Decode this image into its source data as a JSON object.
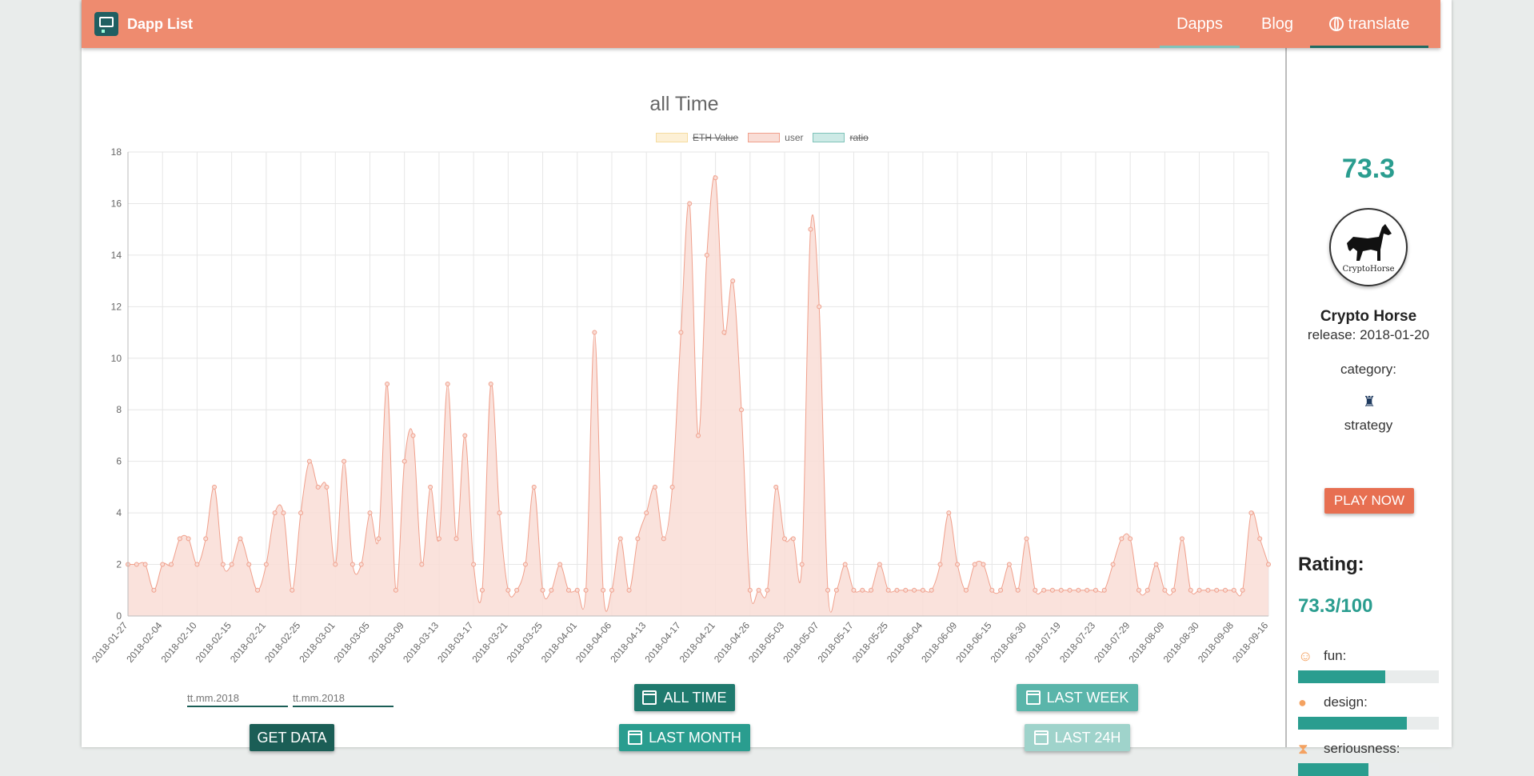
{
  "nav": {
    "brand": "Dapp List",
    "dapps": "Dapps",
    "blog": "Blog",
    "translate": "translate",
    "color": "#ee8b6f"
  },
  "controls": {
    "start_placeholder": "tt.mm.2018",
    "end_placeholder": "tt.mm.2018",
    "get_data": "GET DATA",
    "all_time": "ALL TIME",
    "last_month": "LAST MONTH",
    "last_week": "LAST WEEK",
    "last_24h": "LAST 24H"
  },
  "chart_data": {
    "type": "area",
    "title": "all Time",
    "legend": [
      {
        "label": "ETH Value",
        "hidden": true,
        "color": "#fdf0d5"
      },
      {
        "label": "user",
        "hidden": false,
        "color": "#f9ddd6"
      },
      {
        "label": "ratio",
        "hidden": true,
        "color": "#cdeae6"
      }
    ],
    "ylim": [
      0,
      18
    ],
    "yticks": [
      0,
      2,
      4,
      6,
      8,
      10,
      12,
      14,
      16,
      18
    ],
    "tick_labels": [
      "2018-01-27",
      "2018-02-04",
      "2018-02-10",
      "2018-02-15",
      "2018-02-21",
      "2018-02-25",
      "2018-03-01",
      "2018-03-05",
      "2018-03-09",
      "2018-03-13",
      "2018-03-17",
      "2018-03-21",
      "2018-03-25",
      "2018-04-01",
      "2018-04-06",
      "2018-04-13",
      "2018-04-17",
      "2018-04-21",
      "2018-04-26",
      "2018-05-03",
      "2018-05-07",
      "2018-05-17",
      "2018-05-25",
      "2018-06-04",
      "2018-06-09",
      "2018-06-15",
      "2018-06-30",
      "2018-07-19",
      "2018-07-23",
      "2018-07-29",
      "2018-08-09",
      "2018-08-30",
      "2018-09-08",
      "2018-09-16"
    ],
    "series": [
      {
        "name": "user",
        "color": "#f0a08c",
        "values": [
          2,
          2,
          2,
          1,
          2,
          2,
          3,
          3,
          2,
          3,
          5,
          2,
          2,
          3,
          2,
          1,
          2,
          4,
          4,
          1,
          4,
          6,
          5,
          5,
          2,
          6,
          2,
          2,
          4,
          3,
          9,
          1,
          6,
          7,
          2,
          5,
          3,
          9,
          3,
          7,
          2,
          1,
          9,
          4,
          1,
          1,
          2,
          5,
          1,
          1,
          2,
          1,
          1,
          1,
          11,
          1,
          1,
          3,
          1,
          3,
          4,
          5,
          3,
          5,
          11,
          16,
          7,
          14,
          17,
          11,
          13,
          8,
          1,
          1,
          1,
          5,
          3,
          3,
          2,
          15,
          12,
          1,
          1,
          2,
          1,
          1,
          1,
          2,
          1,
          1,
          1,
          1,
          1,
          1,
          2,
          4,
          2,
          1,
          2,
          2,
          1,
          1,
          2,
          1,
          3,
          1,
          1,
          1,
          1,
          1,
          1,
          1,
          1,
          1,
          2,
          3,
          3,
          1,
          1,
          2,
          1,
          1,
          3,
          1,
          1,
          1,
          1,
          1,
          1,
          1,
          4,
          3,
          2
        ]
      }
    ]
  },
  "sidebar": {
    "score": "73.3",
    "avatar_text": "CryptoHorse",
    "name": "Crypto Horse",
    "release": "release: 2018-01-20",
    "category_label": "category:",
    "category_icon": "chess-rook-icon",
    "category": "strategy",
    "play": "PLAY NOW",
    "rating_title": "Rating:",
    "rating_value": "73.3/100",
    "metrics": [
      {
        "label": "fun:",
        "icon": "smile-icon",
        "value": 0.62
      },
      {
        "label": "design:",
        "icon": "palette-icon",
        "value": 0.77
      },
      {
        "label": "seriousness:",
        "icon": "hourglass-icon",
        "value": 0.5
      }
    ],
    "accent": "#2a9d8f"
  }
}
